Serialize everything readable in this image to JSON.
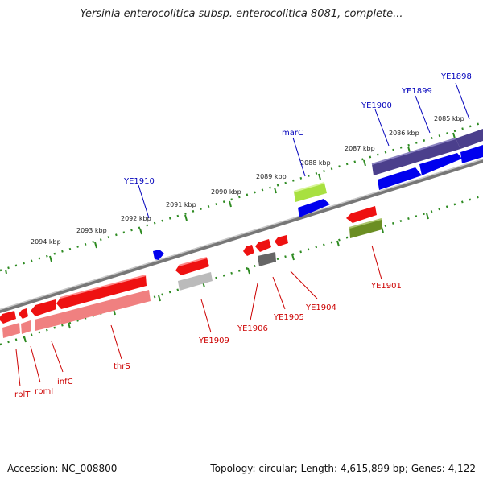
{
  "title": "Yersinia enterocolitica subsp. enterocolitica 8081, complete...",
  "footer": {
    "accession": "Accession: NC_008800",
    "topology": "Topology: circular; Length: 4,615,899 bp; Genes: 4,122"
  },
  "scale_labels": [
    "2085 kbp",
    "2086 kbp",
    "2087 kbp",
    "2088 kbp",
    "2089 kbp",
    "2090 kbp",
    "2091 kbp",
    "2092 kbp",
    "2093 kbp",
    "2094 kbp"
  ],
  "genes_top": [
    "YE1898",
    "YE1899",
    "YE1900",
    "marC",
    "YE1910"
  ],
  "genes_bottom": [
    "YE1901",
    "YE1904",
    "YE1905",
    "YE1906",
    "YE1909",
    "thrS",
    "infC",
    "rpmI",
    "rplT"
  ],
  "colors": {
    "forward_label": "#0000bb",
    "reverse_label": "#cc0000",
    "backbone": "#888888",
    "tick": "#2e8b22",
    "blue_gene": "#0000ee",
    "purple_gene": "#4b3f8c",
    "red_gene": "#ee1111",
    "pink_gene": "#f08080",
    "lime_gene": "#a8e040",
    "olive_gene": "#6b8e23",
    "grey_gene": "#666666"
  }
}
